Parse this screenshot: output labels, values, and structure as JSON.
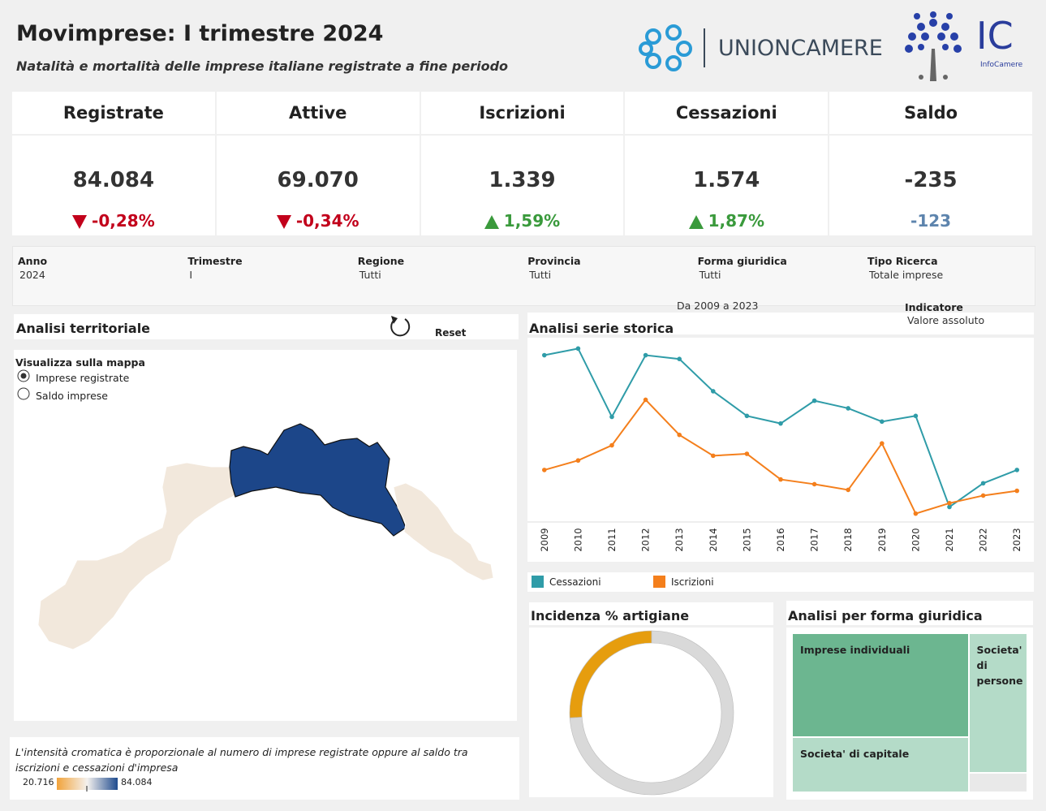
{
  "header": {
    "title": "Movimprese: I trimestre 2024",
    "subtitle": "Natalità e mortalità delle imprese italiane registrate a fine periodo",
    "logo_unioncamere": "UNIONCAMERE",
    "logo_ic": "IC",
    "logo_ic_sub": "InfoCamere"
  },
  "kpis": [
    {
      "label": "Registrate",
      "value": "84.084",
      "change": "-0,28%"
    },
    {
      "label": "Attive",
      "value": "69.070",
      "change": "-0,34%"
    },
    {
      "label": "Iscrizioni",
      "value": "1.339",
      "change": "1,59%"
    },
    {
      "label": "Cessazioni",
      "value": "1.574",
      "change": "1,87%"
    },
    {
      "label": "Saldo",
      "value": "-235",
      "change": "-123"
    }
  ],
  "filters": [
    {
      "label": "Anno",
      "value": "2024"
    },
    {
      "label": "Trimestre",
      "value": "I"
    },
    {
      "label": "Regione",
      "value": "Tutti"
    },
    {
      "label": "Provincia",
      "value": "Tutti"
    },
    {
      "label": "Forma giuridica",
      "value": "Tutti"
    },
    {
      "label": "Tipo Ricerca",
      "value": "Totale imprese"
    }
  ],
  "range_note": "Da 2009 a 2023",
  "indicator": {
    "label": "Indicatore",
    "value": "Valore assoluto"
  },
  "territorial": {
    "title": "Analisi territoriale",
    "reset": "Reset",
    "map_option_title": "Visualizza sulla mappa",
    "options": [
      "Imprese registrate",
      "Saldo imprese"
    ],
    "note": "L'intensità cromatica è proporzionale al numero di imprese registrate oppure al saldo tra iscrizioni e cessazioni d'impresa",
    "legend_min": "20.716",
    "legend_max": "84.084"
  },
  "chart_data": [
    {
      "type": "line",
      "title": "Analisi serie storica",
      "categories": [
        "2009",
        "2010",
        "2011",
        "2012",
        "2013",
        "2014",
        "2015",
        "2016",
        "2017",
        "2018",
        "2019",
        "2020",
        "2021",
        "2022",
        "2023"
      ],
      "ylim": [
        1000,
        2900
      ],
      "series": [
        {
          "name": "Cessazioni",
          "color": "#2f9ca8",
          "values": [
            2750,
            2820,
            2100,
            2750,
            2710,
            2370,
            2110,
            2030,
            2270,
            2190,
            2050,
            2110,
            1150,
            1400,
            1540
          ]
        },
        {
          "name": "Iscrizioni",
          "color": "#f47f1c",
          "values": [
            1540,
            1640,
            1800,
            2280,
            1910,
            1690,
            1710,
            1440,
            1390,
            1330,
            1820,
            1080,
            1190,
            1270,
            1320
          ]
        }
      ]
    },
    {
      "type": "pie",
      "title": "Incidenza % artigiane",
      "values": [
        26,
        74
      ],
      "colors": [
        "#e69d0e",
        "#d9d9d9"
      ]
    },
    {
      "type": "treemap",
      "title": "Analisi per forma giuridica",
      "categories": [
        "Imprese individuali",
        "Societa' di capitale",
        "Societa' di persone",
        null
      ],
      "values": [
        49,
        26,
        22,
        3
      ],
      "colors": [
        "#6cb690",
        "#b4dbc8",
        "#b4dbc8",
        "#e9e9e9"
      ]
    }
  ]
}
